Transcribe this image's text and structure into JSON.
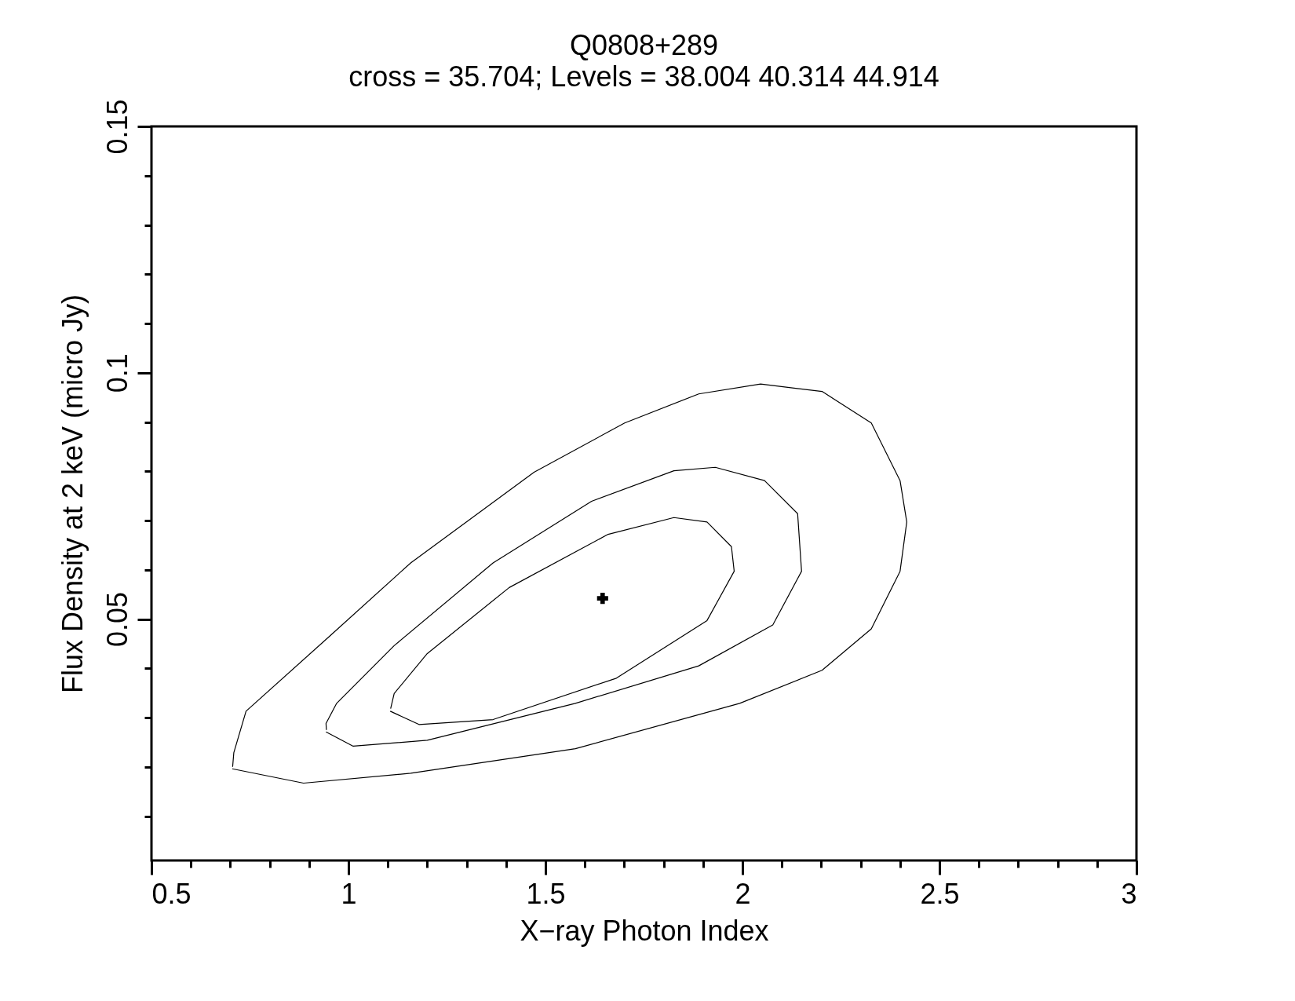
{
  "chart_data": {
    "type": "line",
    "title": "Q0808+289",
    "subtitle": "cross = 35.704; Levels =  38.004 40.314 44.914",
    "xlabel": "X−ray Photon Index",
    "ylabel": "Flux Density at 2 keV (micro Jy)",
    "xlim": [
      0.5,
      3
    ],
    "ylim": [
      0.001,
      0.15
    ],
    "xticks": [
      0.5,
      {
        "value": 0.6,
        "label": null
      },
      {
        "value": 0.7,
        "label": null
      },
      {
        "value": 0.8,
        "label": null
      },
      {
        "value": 0.9,
        "label": null
      },
      1,
      {
        "value": 1.1,
        "label": null
      },
      {
        "value": 1.2,
        "label": null
      },
      {
        "value": 1.3,
        "label": null
      },
      {
        "value": 1.4,
        "label": null
      },
      1.5,
      {
        "value": 1.6,
        "label": null
      },
      {
        "value": 1.7,
        "label": null
      },
      {
        "value": 1.8,
        "label": null
      },
      {
        "value": 1.9,
        "label": null
      },
      2,
      {
        "value": 2.1,
        "label": null
      },
      {
        "value": 2.2,
        "label": null
      },
      {
        "value": 2.3,
        "label": null
      },
      {
        "value": 2.4,
        "label": null
      },
      2.5,
      {
        "value": 2.6,
        "label": null
      },
      {
        "value": 2.7,
        "label": null
      },
      {
        "value": 2.8,
        "label": null
      },
      {
        "value": 2.9,
        "label": null
      },
      3
    ],
    "yticks": [
      {
        "value": 0.01,
        "label": null
      },
      {
        "value": 0.02,
        "label": null
      },
      {
        "value": 0.03,
        "label": null
      },
      {
        "value": 0.04,
        "label": null
      },
      0.05,
      {
        "value": 0.06,
        "label": null
      },
      {
        "value": 0.07,
        "label": null
      },
      {
        "value": 0.08,
        "label": null
      },
      {
        "value": 0.09,
        "label": null
      },
      0.1,
      {
        "value": 0.11,
        "label": null
      },
      {
        "value": 0.12,
        "label": null
      },
      {
        "value": 0.13,
        "label": null
      },
      {
        "value": 0.14,
        "label": null
      },
      0.15
    ],
    "grid": false,
    "line_style": "solid",
    "series": [
      {
        "color": "#000000",
        "marker": "none",
        "x": [
          0.705,
          0.886,
          1.158,
          1.576,
          1.993,
          2.202,
          2.327,
          2.4,
          2.417,
          2.4,
          2.327,
          2.202,
          2.046,
          1.889,
          1.701,
          1.471,
          1.158,
          0.949,
          0.74,
          0.709,
          0.706
        ],
        "values": [
          0.0196,
          0.0167,
          0.0187,
          0.0237,
          0.0329,
          0.0396,
          0.048,
          0.0597,
          0.0697,
          0.0781,
          0.0898,
          0.0962,
          0.0977,
          0.0957,
          0.0898,
          0.0798,
          0.0614,
          0.0463,
          0.0313,
          0.0229,
          0.02
        ]
      },
      {
        "color": "#000000",
        "marker": "none",
        "x": [
          0.943,
          1.012,
          1.2,
          1.576,
          1.889,
          2.077,
          2.15,
          2.14,
          2.056,
          1.931,
          1.826,
          1.617,
          1.367,
          1.116,
          0.97,
          0.943,
          0.944
        ],
        "values": [
          0.0271,
          0.0242,
          0.0254,
          0.0329,
          0.0405,
          0.0488,
          0.0597,
          0.0714,
          0.0781,
          0.0808,
          0.0801,
          0.0739,
          0.0614,
          0.0446,
          0.0329,
          0.0288,
          0.0275
        ]
      },
      {
        "color": "#000000",
        "marker": "none",
        "x": [
          1.106,
          1.179,
          1.367,
          1.68,
          1.91,
          1.979,
          1.972,
          1.91,
          1.826,
          1.659,
          1.408,
          1.2,
          1.116,
          1.107
        ],
        "values": [
          0.0313,
          0.0286,
          0.0296,
          0.038,
          0.0497,
          0.0597,
          0.0647,
          0.0697,
          0.0706,
          0.0672,
          0.0564,
          0.043,
          0.0349,
          0.0318
        ]
      },
      {
        "type": "scatter",
        "color": "#000000",
        "marker": "cross",
        "x": [
          1.645
        ],
        "values": [
          0.0542
        ]
      }
    ]
  }
}
